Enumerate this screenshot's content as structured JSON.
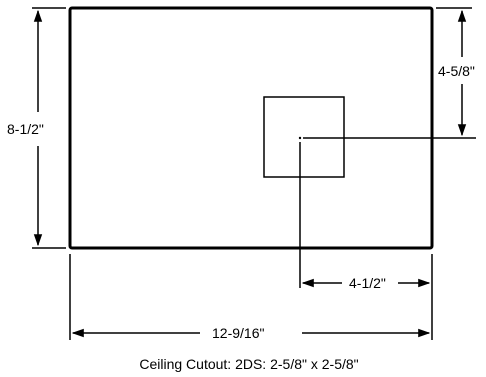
{
  "dimensions": {
    "height_label": "8-1/2\"",
    "width_label": "12-9/16\"",
    "cutout_offset_y_label": "4-5/8\"",
    "cutout_offset_x_label": "4-1/2\""
  },
  "caption": "Ceiling Cutout: 2DS: 2-5/8\" x 2-5/8\""
}
